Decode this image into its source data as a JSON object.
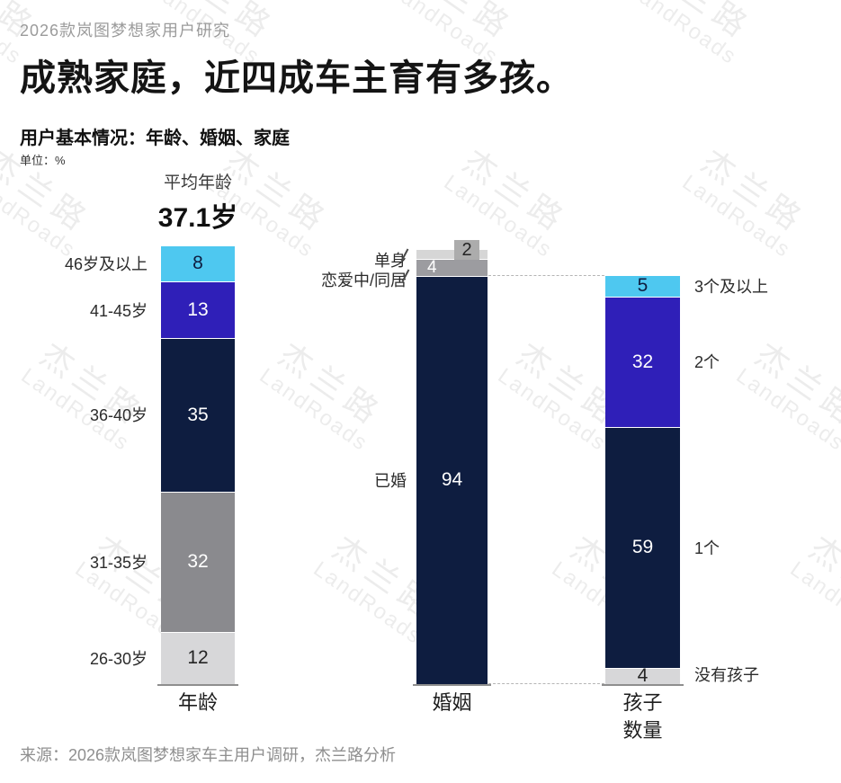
{
  "header": {
    "eyebrow": "2026款岚图梦想家用户研究",
    "title": "成熟家庭，近四成车主育有多孩。",
    "subtitle": "用户基本情况：年龄、婚姻、家庭",
    "unit": "单位：%"
  },
  "watermark": {
    "cn": "杰兰路",
    "en": "LandRoads"
  },
  "footer": {
    "source": "来源：2026款岚图梦想家车主用户调研，杰兰路分析"
  },
  "colors": {
    "navy": "#0E1D40",
    "purple": "#2F1FB8",
    "cyan": "#4EC8F0",
    "gray_mid": "#8A8A8E",
    "gray_light": "#D7D7D9",
    "single_gray": "#D6D6D6",
    "cohabit_gray": "#9C9CA0",
    "chip_gray": "#ACACAC",
    "text_light": "#FFFFFF",
    "text_on_cyan": "#0E1D40",
    "text_on_light": "#242424",
    "baseline": "#8E8E8E",
    "dashed": "#B5B5B5"
  },
  "chart_data": [
    {
      "type": "bar",
      "subtype": "stacked-column",
      "id": "age",
      "axis_label": "年龄",
      "unit": "%",
      "total": 100,
      "legend_position": "left",
      "annotation": {
        "label": "平均年龄",
        "value": "37.1岁"
      },
      "segments": [
        {
          "label": "46岁及以上",
          "value": 8,
          "color": "cyan",
          "value_color": "text_on_cyan"
        },
        {
          "label": "41-45岁",
          "value": 13,
          "color": "purple",
          "value_color": "text_light"
        },
        {
          "label": "36-40岁",
          "value": 35,
          "color": "navy",
          "value_color": "text_light"
        },
        {
          "label": "31-35岁",
          "value": 32,
          "color": "gray_mid",
          "value_color": "text_light"
        },
        {
          "label": "26-30岁",
          "value": 12,
          "color": "gray_light",
          "value_color": "text_on_light"
        }
      ]
    },
    {
      "type": "bar",
      "subtype": "stacked-column",
      "id": "marriage",
      "axis_label": "婚姻",
      "unit": "%",
      "total": 100,
      "legend_position": "left",
      "segments": [
        {
          "label": "单身",
          "value": 2,
          "color": "single_gray",
          "value_color": "text_on_light",
          "value_display": "chip"
        },
        {
          "label": "恋爱中/同居",
          "value": 4,
          "color": "cohabit_gray",
          "value_color": "text_light",
          "value_display": "offset-left"
        },
        {
          "label": "已婚",
          "value": 94,
          "color": "navy",
          "value_color": "text_light"
        }
      ]
    },
    {
      "type": "bar",
      "subtype": "stacked-column",
      "id": "children",
      "axis_label": "孩子\n数量",
      "unit": "%",
      "total": 100,
      "legend_position": "right",
      "note": "dashed connectors link the married (94) span of the marriage bar to the full children bar",
      "segments": [
        {
          "label": "3个及以上",
          "value": 5,
          "color": "cyan",
          "value_color": "text_on_cyan"
        },
        {
          "label": "2个",
          "value": 32,
          "color": "purple",
          "value_color": "text_light"
        },
        {
          "label": "1个",
          "value": 59,
          "color": "navy",
          "value_color": "text_light"
        },
        {
          "label": "没有孩子",
          "value": 4,
          "color": "gray_light",
          "value_color": "text_on_light"
        }
      ]
    }
  ]
}
